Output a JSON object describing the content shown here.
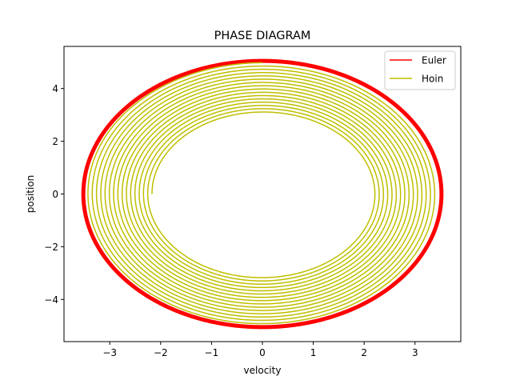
{
  "chart_data": {
    "type": "line",
    "title": "PHASE DIAGRAM",
    "xlabel": "velocity",
    "ylabel": "position",
    "xlim": [
      -3.9,
      3.9
    ],
    "ylim": [
      -5.6,
      5.6
    ],
    "xticks": [
      -3,
      -2,
      -1,
      0,
      1,
      2,
      3
    ],
    "yticks": [
      -4,
      -2,
      0,
      2,
      4
    ],
    "xtick_labels": [
      "−3",
      "−2",
      "−1",
      "0",
      "1",
      "2",
      "3"
    ],
    "ytick_labels": [
      "−4",
      "−2",
      "0",
      "2",
      "4"
    ],
    "grid": false,
    "legend_position": "top-right",
    "series": [
      {
        "name": "Euler",
        "color": "#ff0000",
        "shape": "closed-orbit",
        "x_amplitude": 3.52,
        "y_amplitude": 5.05
      },
      {
        "name": "Hoin",
        "color": "#bfbf00",
        "shape": "outward-spiral",
        "start_point": [
          -2.17,
          0
        ],
        "end_point": [
          0,
          4.98
        ],
        "x_amplitude_start": 2.17,
        "x_amplitude_end": 3.45,
        "y_amplitude_start": 3.08,
        "y_amplitude_end": 4.98,
        "turns": 15.25
      }
    ]
  }
}
